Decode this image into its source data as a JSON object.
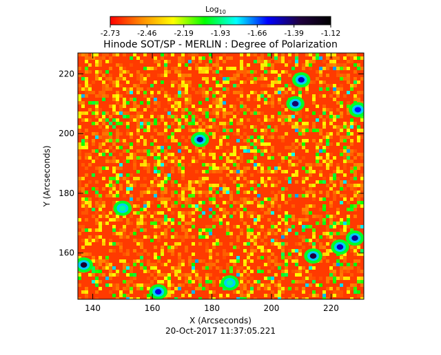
{
  "chart_data": {
    "type": "heatmap",
    "title": "Hinode SOT/SP - MERLIN : Degree of Polarization",
    "xlabel": "X (Arcseconds)",
    "ylabel": "Y (Arcseconds)",
    "timestamp": "20-Oct-2017 11:37:05.221",
    "xlim": [
      135,
      231
    ],
    "ylim": [
      144.5,
      227
    ],
    "xticks": [
      140,
      160,
      180,
      200,
      220
    ],
    "yticks": [
      160,
      180,
      200,
      220
    ],
    "colorbar": {
      "title_main": "Log",
      "title_sub": "10",
      "range": [
        -2.73,
        -1.12
      ],
      "tick_labels": [
        "-2.73",
        "-2.46",
        "-2.19",
        "-1.93",
        "-1.66",
        "-1.39",
        "-1.12"
      ],
      "colors": [
        "#ff0000",
        "#ff8c00",
        "#ffff00",
        "#00ff00",
        "#00ffff",
        "#0000ff",
        "#200040",
        "#000000"
      ]
    },
    "features": [
      {
        "x": 137,
        "y": 156,
        "level": -1.3
      },
      {
        "x": 176,
        "y": 198,
        "level": -1.45
      },
      {
        "x": 208,
        "y": 210,
        "level": -1.4
      },
      {
        "x": 210,
        "y": 218,
        "level": -1.5
      },
      {
        "x": 214,
        "y": 159,
        "level": -1.35
      },
      {
        "x": 223,
        "y": 162,
        "level": -1.5
      },
      {
        "x": 228,
        "y": 165,
        "level": -1.45
      },
      {
        "x": 229,
        "y": 208,
        "level": -1.6
      },
      {
        "x": 162,
        "y": 147,
        "level": -1.55
      },
      {
        "x": 150,
        "y": 175,
        "level": -1.9
      },
      {
        "x": 186,
        "y": 150,
        "level": -1.9
      }
    ]
  }
}
